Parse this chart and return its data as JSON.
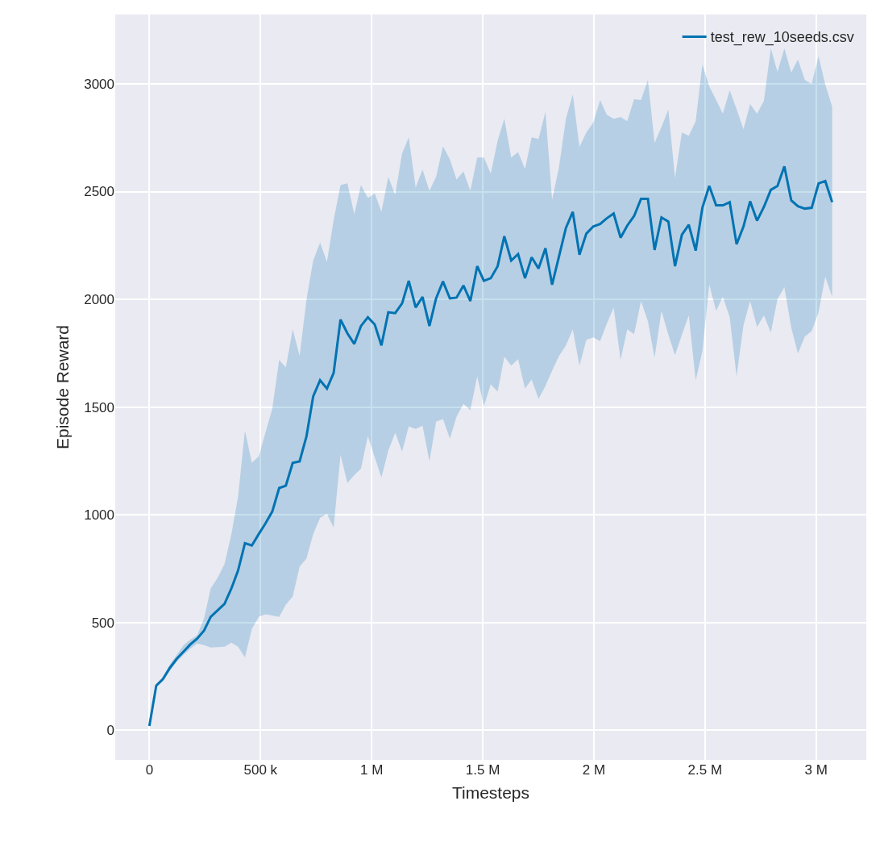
{
  "chart_data": {
    "type": "line",
    "xlabel": "Timesteps",
    "ylabel": "Episode Reward",
    "x": [
      0,
      31000,
      61000,
      92000,
      123000,
      154000,
      184000,
      215000,
      246000,
      276000,
      307000,
      338000,
      369000,
      399000,
      430000,
      461000,
      492000,
      522000,
      553000,
      584000,
      614000,
      645000,
      676000,
      707000,
      737000,
      768000,
      799000,
      829000,
      860000,
      891000,
      922000,
      952000,
      983000,
      1014000,
      1044000,
      1075000,
      1106000,
      1137000,
      1167000,
      1198000,
      1229000,
      1260000,
      1290000,
      1321000,
      1352000,
      1382000,
      1413000,
      1444000,
      1475000,
      1505000,
      1536000,
      1567000,
      1597000,
      1628000,
      1659000,
      1690000,
      1720000,
      1751000,
      1782000,
      1812000,
      1843000,
      1874000,
      1905000,
      1935000,
      1966000,
      1997000,
      2028000,
      2058000,
      2089000,
      2120000,
      2150000,
      2181000,
      2212000,
      2243000,
      2273000,
      2304000,
      2335000,
      2365000,
      2396000,
      2427000,
      2458000,
      2488000,
      2519000,
      2550000,
      2580000,
      2611000,
      2642000,
      2673000,
      2703000,
      2734000,
      2765000,
      2796000,
      2826000,
      2857000,
      2888000,
      2918000,
      2949000,
      2980000,
      3011000,
      3041000,
      3072000
    ],
    "series": [
      {
        "name": "test_rew_10seeds.csv",
        "color": "#0173b2",
        "values": [
          19,
          207,
          237,
          289,
          331,
          365,
          398,
          425,
          462,
          526,
          556,
          586,
          658,
          741,
          868,
          857,
          910,
          959,
          1015,
          1124,
          1135,
          1241,
          1248,
          1365,
          1549,
          1624,
          1586,
          1658,
          1906,
          1842,
          1793,
          1876,
          1917,
          1883,
          1786,
          1940,
          1936,
          1981,
          2086,
          1962,
          2011,
          1876,
          2004,
          2083,
          2004,
          2008,
          2064,
          1992,
          2154,
          2086,
          2098,
          2154,
          2293,
          2180,
          2210,
          2098,
          2195,
          2143,
          2237,
          2068,
          2199,
          2331,
          2406,
          2207,
          2305,
          2338,
          2350,
          2376,
          2398,
          2286,
          2342,
          2387,
          2466,
          2466,
          2229,
          2380,
          2361,
          2154,
          2300,
          2346,
          2226,
          2425,
          2526,
          2436,
          2436,
          2451,
          2256,
          2338,
          2455,
          2365,
          2429,
          2508,
          2526,
          2617,
          2459,
          2432,
          2421,
          2425,
          2538,
          2549,
          2451
        ],
        "lower": [
          19,
          200,
          228,
          275,
          318,
          350,
          378,
          402,
          395,
          383,
          385,
          387,
          406,
          387,
          338,
          470,
          526,
          538,
          532,
          526,
          583,
          620,
          759,
          797,
          910,
          985,
          1004,
          940,
          1278,
          1147,
          1184,
          1214,
          1365,
          1267,
          1173,
          1297,
          1380,
          1293,
          1410,
          1398,
          1413,
          1248,
          1432,
          1444,
          1353,
          1455,
          1515,
          1485,
          1643,
          1504,
          1605,
          1571,
          1733,
          1692,
          1722,
          1586,
          1628,
          1538,
          1598,
          1669,
          1737,
          1786,
          1861,
          1692,
          1812,
          1823,
          1805,
          1887,
          1962,
          1718,
          1861,
          1838,
          1992,
          1898,
          1729,
          1947,
          1835,
          1741,
          1835,
          1925,
          1624,
          1759,
          2068,
          1947,
          2011,
          1917,
          1643,
          1880,
          1992,
          1872,
          1925,
          1846,
          2000,
          2056,
          1868,
          1748,
          1827,
          1853,
          1940,
          2105,
          2011
        ],
        "upper": [
          19,
          212,
          245,
          305,
          350,
          395,
          420,
          440,
          519,
          658,
          707,
          771,
          910,
          1083,
          1391,
          1241,
          1271,
          1380,
          1492,
          1718,
          1684,
          1861,
          1737,
          2000,
          2180,
          2263,
          2173,
          2368,
          2530,
          2538,
          2395,
          2530,
          2470,
          2492,
          2406,
          2568,
          2485,
          2677,
          2752,
          2519,
          2602,
          2504,
          2568,
          2711,
          2650,
          2556,
          2594,
          2504,
          2658,
          2658,
          2583,
          2737,
          2838,
          2658,
          2684,
          2605,
          2752,
          2744,
          2870,
          2462,
          2613,
          2838,
          2951,
          2707,
          2774,
          2820,
          2925,
          2857,
          2838,
          2846,
          2827,
          2929,
          2925,
          3019,
          2726,
          2801,
          2880,
          2564,
          2774,
          2759,
          2827,
          3090,
          2989,
          2925,
          2861,
          2970,
          2883,
          2789,
          2906,
          2861,
          2921,
          3165,
          3056,
          3165,
          3052,
          3113,
          3019,
          3000,
          3128,
          2996,
          2895
        ]
      }
    ],
    "xlim": [
      -153600,
      3225600
    ],
    "ylim": [
      -138,
      3322
    ],
    "xticks": [
      0,
      {
        "value": 500000,
        "label": "500 k"
      },
      {
        "value": 1000000,
        "label": "1 M"
      },
      {
        "value": 1500000,
        "label": "1.5 M"
      },
      {
        "value": 2000000,
        "label": "2 M"
      },
      {
        "value": 2500000,
        "label": "2.5 M"
      },
      {
        "value": 3000000,
        "label": "3 M"
      }
    ],
    "yticks": [
      0,
      500,
      1000,
      1500,
      2000,
      2500,
      3000
    ],
    "grid": true,
    "legend": "top right",
    "line_style": "solid"
  }
}
